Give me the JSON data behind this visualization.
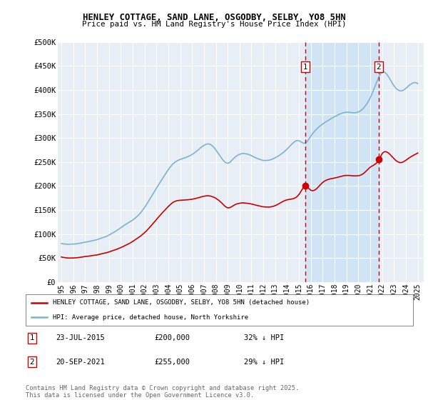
{
  "title_line1": "HENLEY COTTAGE, SAND LANE, OSGODBY, SELBY, YO8 5HN",
  "title_line2": "Price paid vs. HM Land Registry's House Price Index (HPI)",
  "ylabel_ticks": [
    "£0",
    "£50K",
    "£100K",
    "£150K",
    "£200K",
    "£250K",
    "£300K",
    "£350K",
    "£400K",
    "£450K",
    "£500K"
  ],
  "ytick_vals": [
    0,
    50000,
    100000,
    150000,
    200000,
    250000,
    300000,
    350000,
    400000,
    450000,
    500000
  ],
  "ylim": [
    0,
    500000
  ],
  "xlim_start": 1994.7,
  "xlim_end": 2025.5,
  "hpi_color": "#7ab3d4",
  "price_color": "#cc0000",
  "dashed_color": "#cc0000",
  "background_color": "#e8eef5",
  "grid_color": "#ffffff",
  "shade_color": "#d0e4f5",
  "marker1_x": 2015.55,
  "marker1_y": 200000,
  "marker1_label": "1",
  "marker1_date": "23-JUL-2015",
  "marker1_price": "£200,000",
  "marker1_note": "32% ↓ HPI",
  "marker2_x": 2021.72,
  "marker2_y": 255000,
  "marker2_label": "2",
  "marker2_date": "20-SEP-2021",
  "marker2_price": "£255,000",
  "marker2_note": "29% ↓ HPI",
  "legend_label1": "HENLEY COTTAGE, SAND LANE, OSGODBY, SELBY, YO8 5HN (detached house)",
  "legend_label2": "HPI: Average price, detached house, North Yorkshire",
  "footer": "Contains HM Land Registry data © Crown copyright and database right 2025.\nThis data is licensed under the Open Government Licence v3.0."
}
